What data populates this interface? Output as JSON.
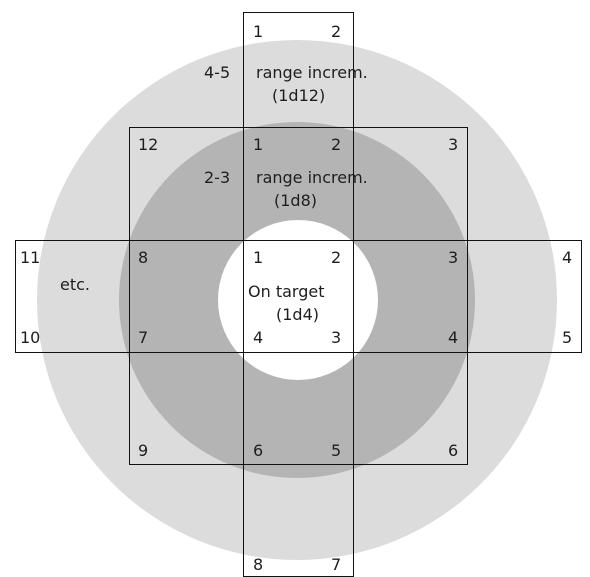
{
  "colors": {
    "background": "#ffffff",
    "outer_ring": "#dcdcdc",
    "middle_ring": "#b4b4b4",
    "center": "#ffffff",
    "lines": "#111111",
    "text": "#1e1e1e"
  },
  "zones": {
    "outer": {
      "range": "4-5",
      "label_line1": "range increm.",
      "label_line2": "(1d12)"
    },
    "middle": {
      "range": "2-3",
      "label_line1": "range increm.",
      "label_line2": "(1d8)"
    },
    "center": {
      "label_line1": "On target",
      "label_line2": "(1d4)"
    },
    "side": {
      "label": "etc."
    }
  },
  "numbers": {
    "top_box": [
      "1",
      "2"
    ],
    "bottom_box": [
      "8",
      "7"
    ],
    "mid_box": [
      "12",
      "1",
      "2",
      "3",
      "9",
      "6",
      "5",
      "6"
    ],
    "left_box": [
      "11",
      "10"
    ],
    "right_box": [
      "4",
      "5"
    ],
    "cross_row": [
      "8",
      "1",
      "2",
      "3",
      "7",
      "4",
      "3",
      "4"
    ]
  }
}
